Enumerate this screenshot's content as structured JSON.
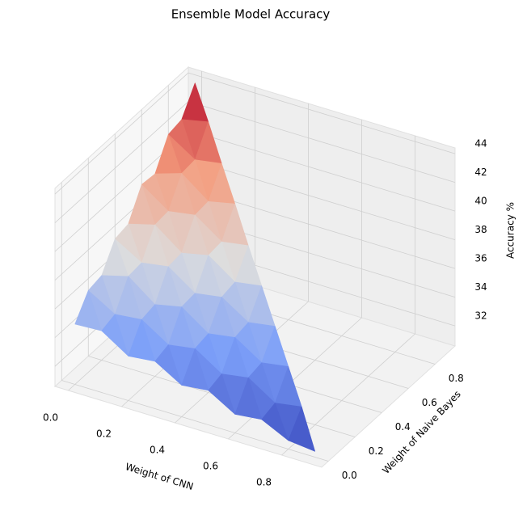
{
  "chart_data": {
    "type": "trisurf",
    "title": "Ensemble Model Accuracy",
    "xlabel": "Weight of CNN",
    "ylabel": "Weight of Naive Bayes",
    "zlabel": "Accuracy %",
    "colormap": "coolwarm",
    "grid": true,
    "xlim": [
      -0.05,
      0.95
    ],
    "ylim": [
      -0.05,
      0.95
    ],
    "zlim": [
      30.6,
      44.4
    ],
    "xticks": [
      {
        "value": 0,
        "label": "0.0"
      },
      0.2,
      0.4,
      0.6,
      0.8
    ],
    "yticks": [
      {
        "value": 0,
        "label": "0.0"
      },
      0.2,
      0.4,
      0.6,
      0.8
    ],
    "zticks": [
      32,
      34,
      36,
      38,
      40,
      42,
      44
    ],
    "x": [
      0,
      0,
      0,
      0,
      0,
      0,
      0,
      0,
      0,
      0,
      0.1,
      0.1,
      0.1,
      0.1,
      0.1,
      0.1,
      0.1,
      0.1,
      0.1,
      0.2,
      0.2,
      0.2,
      0.2,
      0.2,
      0.2,
      0.2,
      0.2,
      0.3,
      0.3,
      0.3,
      0.3,
      0.3,
      0.3,
      0.3,
      0.4,
      0.4,
      0.4,
      0.4,
      0.4,
      0.4,
      0.5,
      0.5,
      0.5,
      0.5,
      0.5,
      0.6,
      0.6,
      0.6,
      0.6,
      0.7,
      0.7,
      0.7,
      0.8,
      0.8,
      0.9
    ],
    "y": [
      0,
      0.1,
      0.2,
      0.3,
      0.4,
      0.5,
      0.6,
      0.7,
      0.8,
      0.9,
      0,
      0.1,
      0.2,
      0.3,
      0.4,
      0.5,
      0.6,
      0.7,
      0.8,
      0,
      0.1,
      0.2,
      0.3,
      0.4,
      0.5,
      0.6,
      0.7,
      0,
      0.1,
      0.2,
      0.3,
      0.4,
      0.5,
      0.6,
      0,
      0.1,
      0.2,
      0.3,
      0.4,
      0.5,
      0,
      0.1,
      0.2,
      0.3,
      0.4,
      0,
      0.1,
      0.2,
      0.3,
      0,
      0.1,
      0.2,
      0,
      0.1,
      0
    ],
    "z": [
      34.8,
      36.3,
      36.5,
      38.2,
      38.4,
      40.3,
      40.2,
      42.1,
      42.3,
      44.0,
      34.9,
      35.2,
      37.0,
      37.1,
      38.9,
      39.0,
      40.8,
      40.9,
      42.7,
      33.7,
      35.4,
      35.6,
      37.4,
      37.5,
      39.3,
      39.4,
      41.2,
      33.9,
      34.2,
      36.0,
      36.1,
      37.9,
      38.0,
      39.8,
      32.8,
      34.5,
      34.7,
      36.4,
      36.6,
      38.3,
      33.0,
      33.3,
      35.0,
      35.2,
      36.9,
      31.9,
      33.6,
      33.8,
      35.5,
      32.1,
      32.4,
      34.1,
      31.2,
      32.7,
      31.0
    ]
  }
}
